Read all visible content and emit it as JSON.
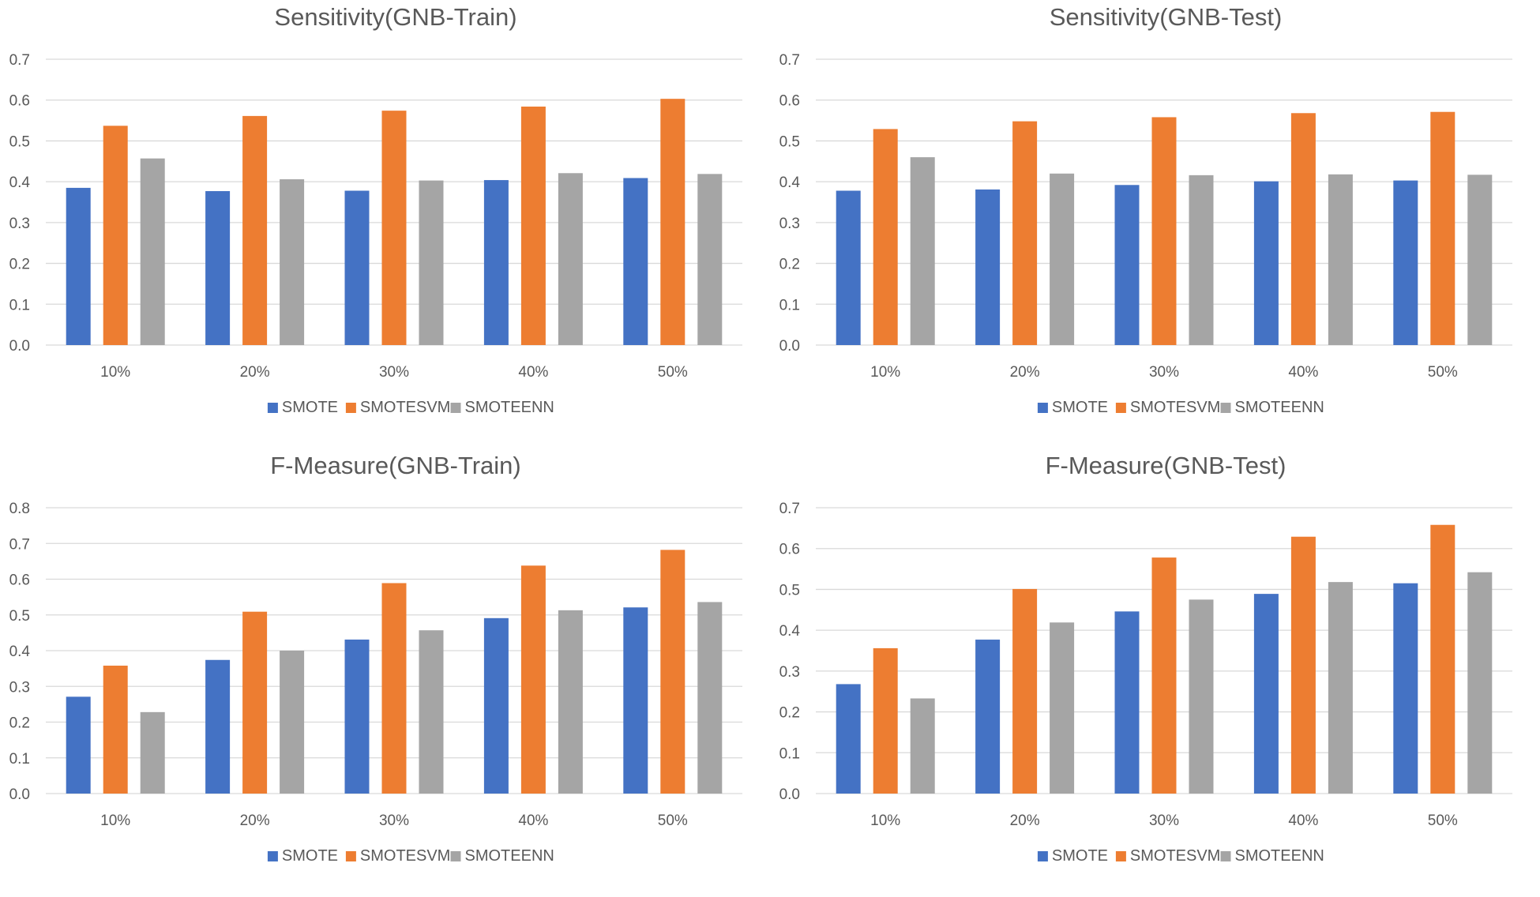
{
  "series_colors": [
    "#4472C4",
    "#ED7D31",
    "#A5A5A5"
  ],
  "chart_data": [
    {
      "type": "bar",
      "title": "Sensitivity(GNB-Train)",
      "categories": [
        "10%",
        "20%",
        "30%",
        "40%",
        "50%"
      ],
      "yticks": [
        "0.0",
        "0.1",
        "0.2",
        "0.3",
        "0.4",
        "0.5",
        "0.6",
        "0.7"
      ],
      "ylim": [
        0,
        0.7
      ],
      "grid": true,
      "legend": "bottom",
      "series": [
        {
          "name": "SMOTE",
          "values": [
            0.385,
            0.377,
            0.378,
            0.404,
            0.409
          ]
        },
        {
          "name": "SMOTESVM",
          "values": [
            0.537,
            0.561,
            0.574,
            0.584,
            0.603
          ]
        },
        {
          "name": "SMOTEENN",
          "values": [
            0.457,
            0.406,
            0.403,
            0.421,
            0.419
          ]
        }
      ]
    },
    {
      "type": "bar",
      "title": "Sensitivity(GNB-Test)",
      "categories": [
        "10%",
        "20%",
        "30%",
        "40%",
        "50%"
      ],
      "yticks": [
        "0.0",
        "0.1",
        "0.2",
        "0.3",
        "0.4",
        "0.5",
        "0.6",
        "0.7"
      ],
      "ylim": [
        0,
        0.7
      ],
      "grid": true,
      "legend": "bottom",
      "series": [
        {
          "name": "SMOTE",
          "values": [
            0.378,
            0.381,
            0.392,
            0.401,
            0.403
          ]
        },
        {
          "name": "SMOTESVM",
          "values": [
            0.529,
            0.548,
            0.558,
            0.568,
            0.571
          ]
        },
        {
          "name": "SMOTEENN",
          "values": [
            0.46,
            0.42,
            0.416,
            0.418,
            0.417
          ]
        }
      ]
    },
    {
      "type": "bar",
      "title": "F-Measure(GNB-Train)",
      "categories": [
        "10%",
        "20%",
        "30%",
        "40%",
        "50%"
      ],
      "yticks": [
        "0.0",
        "0.1",
        "0.2",
        "0.3",
        "0.4",
        "0.5",
        "0.6",
        "0.7",
        "0.8"
      ],
      "ylim": [
        0,
        0.8
      ],
      "grid": true,
      "legend": "bottom",
      "series": [
        {
          "name": "SMOTE",
          "values": [
            0.271,
            0.374,
            0.431,
            0.491,
            0.521
          ]
        },
        {
          "name": "SMOTESVM",
          "values": [
            0.358,
            0.509,
            0.589,
            0.638,
            0.682
          ]
        },
        {
          "name": "SMOTEENN",
          "values": [
            0.228,
            0.4,
            0.457,
            0.513,
            0.536
          ]
        }
      ]
    },
    {
      "type": "bar",
      "title": "F-Measure(GNB-Test)",
      "categories": [
        "10%",
        "20%",
        "30%",
        "40%",
        "50%"
      ],
      "yticks": [
        "0.0",
        "0.1",
        "0.2",
        "0.3",
        "0.4",
        "0.5",
        "0.6",
        "0.7"
      ],
      "ylim": [
        0,
        0.7
      ],
      "grid": true,
      "legend": "bottom",
      "series": [
        {
          "name": "SMOTE",
          "values": [
            0.268,
            0.377,
            0.446,
            0.489,
            0.515
          ]
        },
        {
          "name": "SMOTESVM",
          "values": [
            0.356,
            0.501,
            0.578,
            0.629,
            0.658
          ]
        },
        {
          "name": "SMOTEENN",
          "values": [
            0.233,
            0.419,
            0.475,
            0.518,
            0.542
          ]
        }
      ]
    }
  ]
}
